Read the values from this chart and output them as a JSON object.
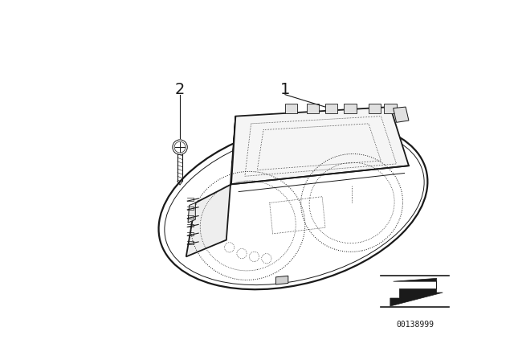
{
  "bg_color": "#ffffff",
  "line_color": "#1a1a1a",
  "label_1": "1",
  "label_2": "2",
  "part_number": "00138999",
  "lw_main": 1.3,
  "lw_thin": 0.7,
  "lw_dot": 0.55
}
